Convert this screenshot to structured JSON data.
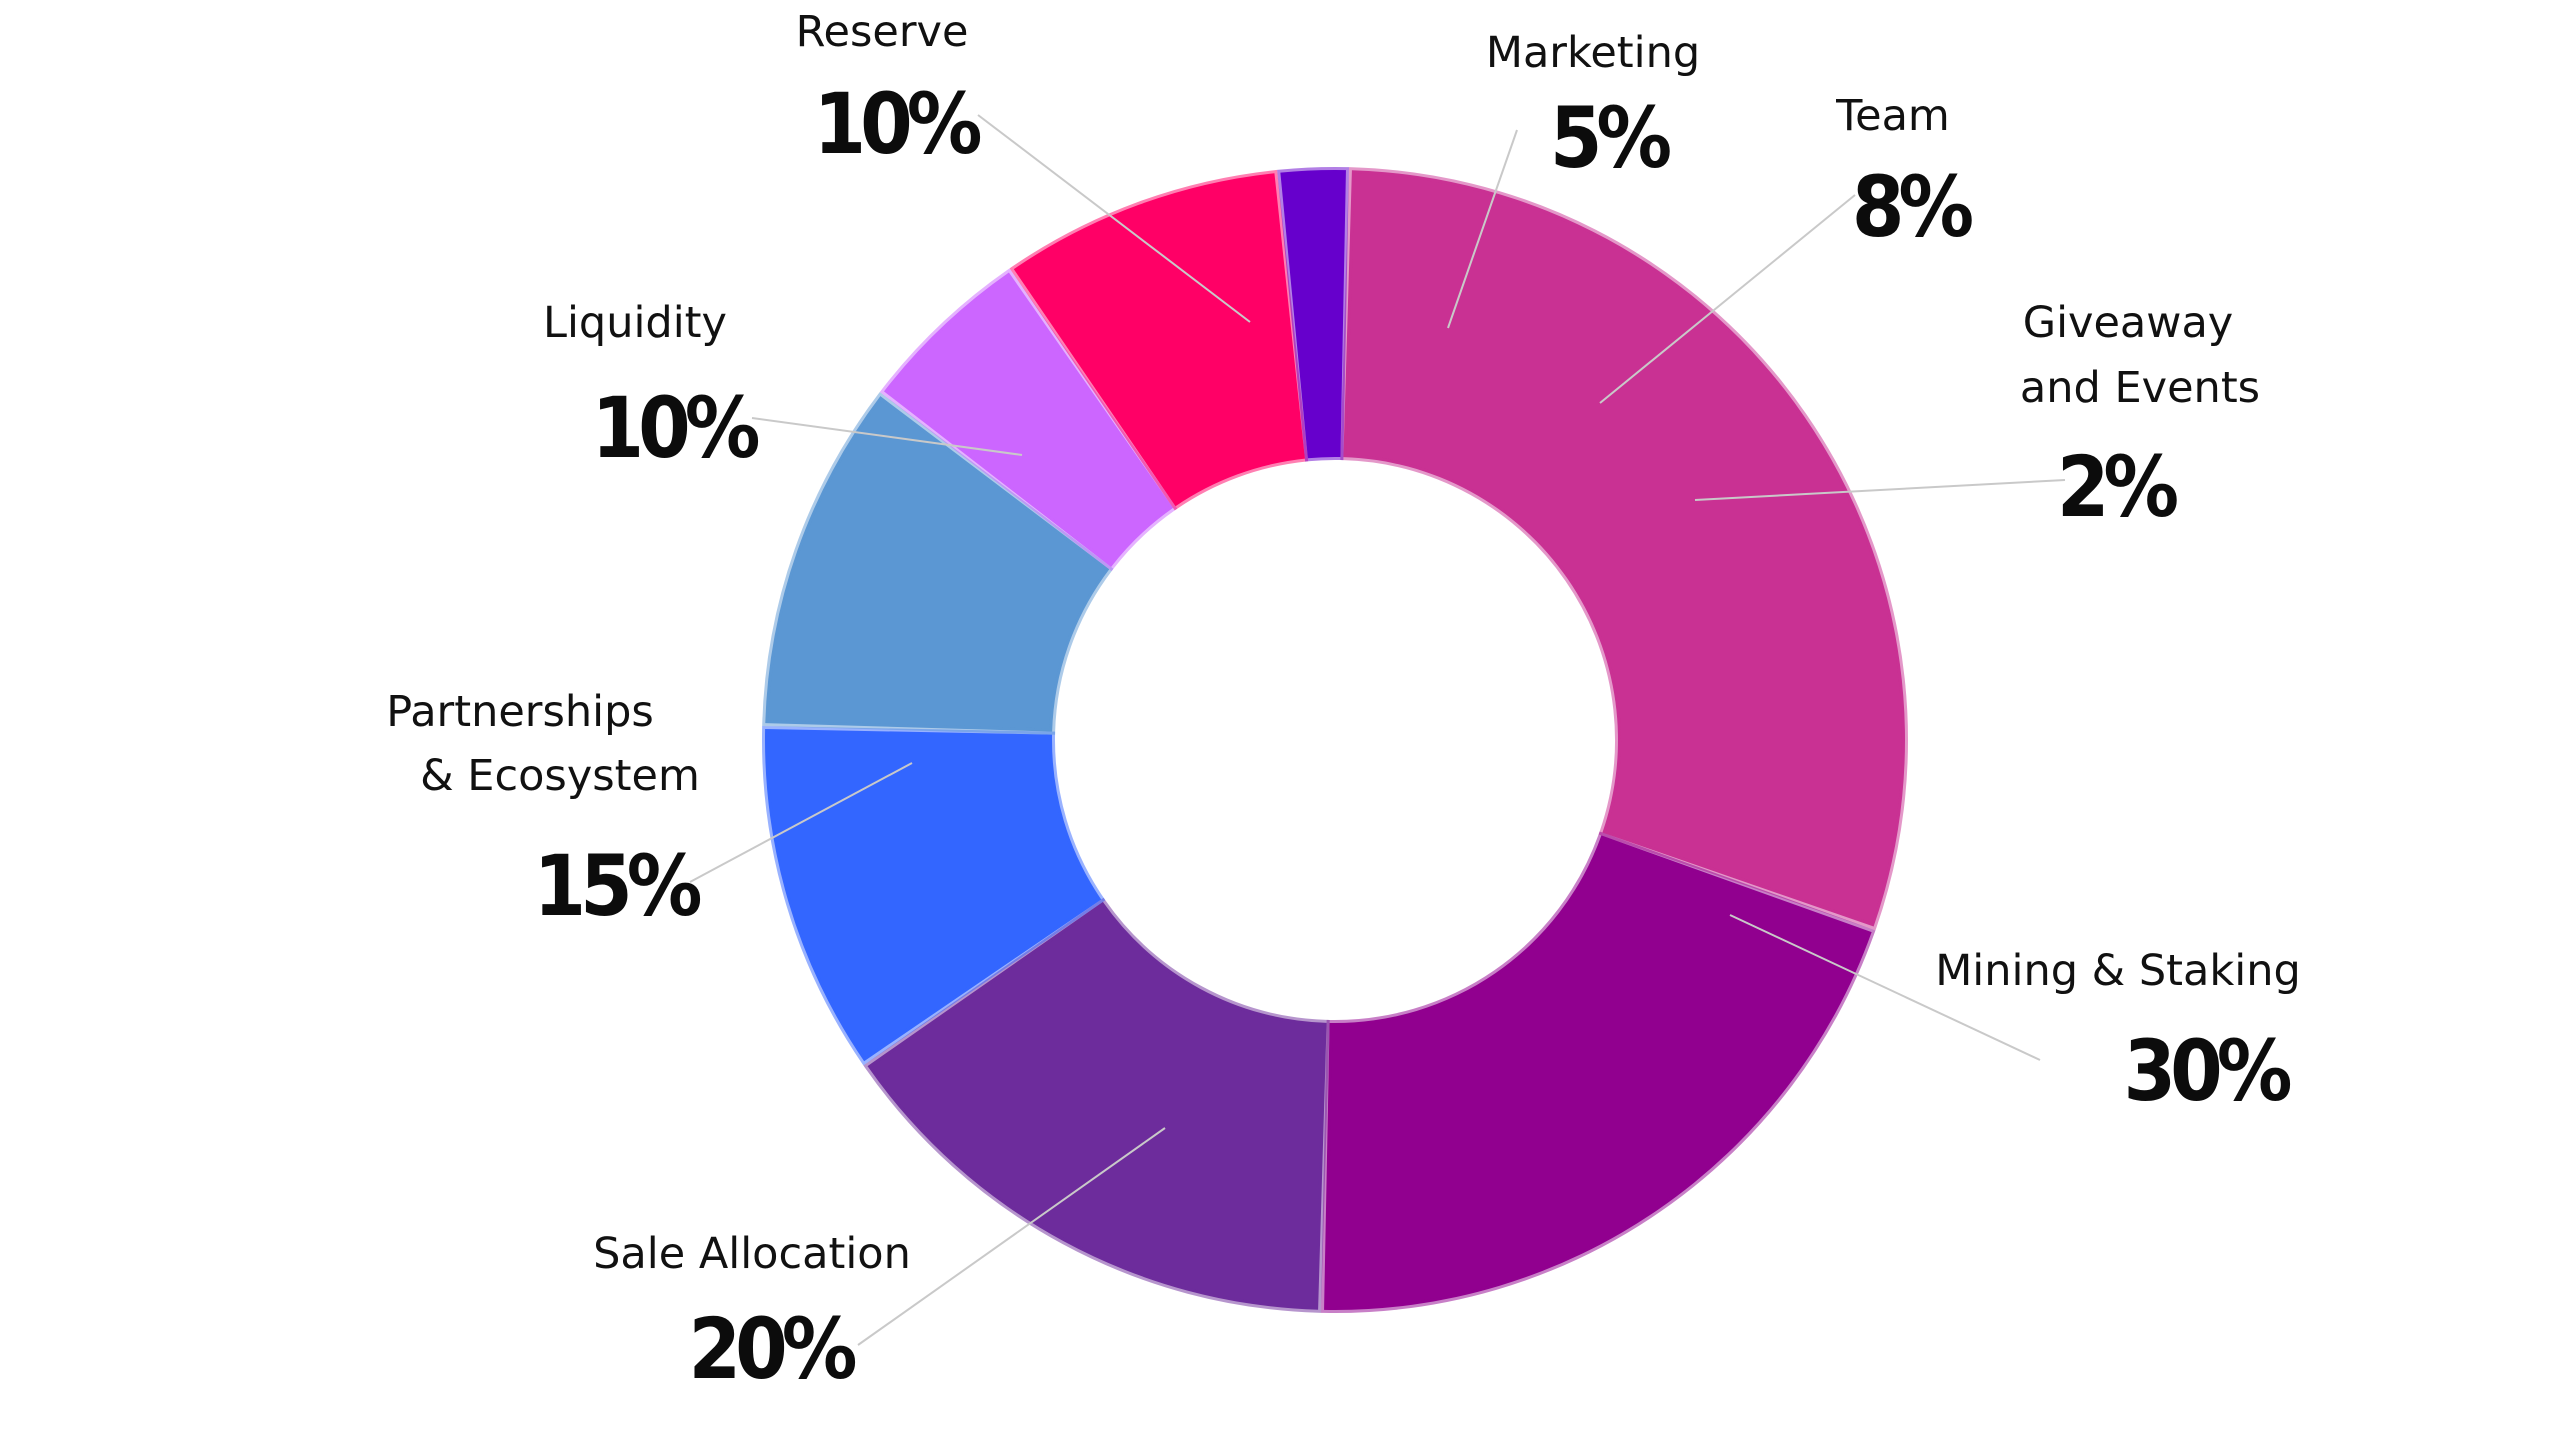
{
  "chart_data": {
    "type": "pie",
    "variant": "donut",
    "unit": "%",
    "slices": [
      {
        "label": "Mining & Staking",
        "value": 30,
        "value_label": "30%",
        "color": "#c93193"
      },
      {
        "label": "Sale Allocation",
        "value": 20,
        "value_label": "20%",
        "color": "#91008f"
      },
      {
        "label": "Partnerships & Ecosystem",
        "value": 15,
        "value_label": "15%",
        "color": "#6d2c9c"
      },
      {
        "label": "Liquidity",
        "value": 10,
        "value_label": "10%",
        "color": "#3366ff"
      },
      {
        "label": "Reserve",
        "value": 10,
        "value_label": "10%",
        "color": "#5b97d3"
      },
      {
        "label": "Marketing",
        "value": 5,
        "value_label": "5%",
        "color": "#cc66ff"
      },
      {
        "label": "Team",
        "value": 8,
        "value_label": "8%",
        "color": "#ff0066"
      },
      {
        "label": "Giveaway and Events",
        "value": 2,
        "value_label": "2%",
        "color": "#6600cc"
      }
    ]
  }
}
